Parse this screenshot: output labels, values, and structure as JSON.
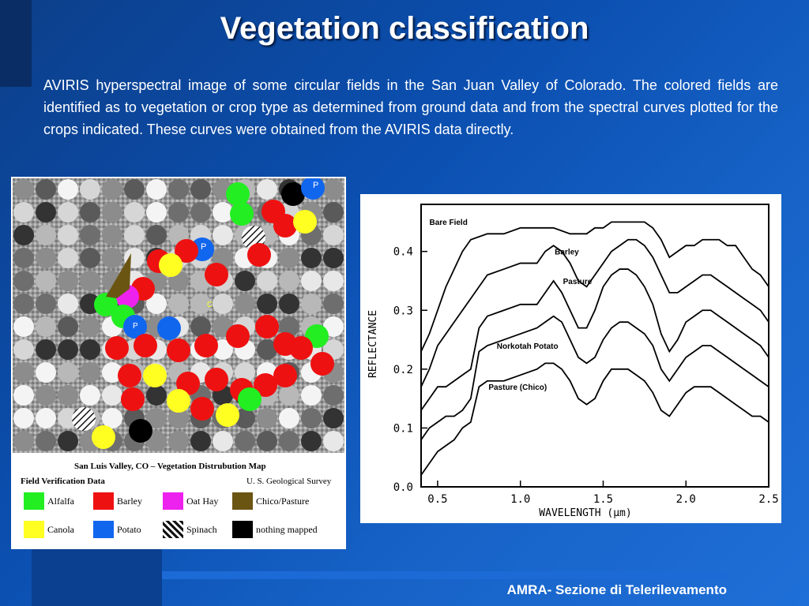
{
  "slide": {
    "title": "Vegetation classification",
    "description": "AVIRIS hyperspectral image of some circular fields in the San Juan Valley of Colorado. The colored fields are identified as to vegetation or crop type as determined from ground data and from the spectral curves plotted for the crops indicated. These curves were obtained from the AVIRIS data directly.",
    "footer": "AMRA- Sezione di Telerilevamento"
  },
  "map": {
    "title": "San Luis Valley, CO – Vegetation Distrubution Map",
    "field_label": "Field Verification Data",
    "source": "U. S. Geological Survey",
    "legend": [
      {
        "label": "Alfalfa",
        "color": "#22ee22"
      },
      {
        "label": "Barley",
        "color": "#ee1111"
      },
      {
        "label": "Oat Hay",
        "color": "#ee22ee"
      },
      {
        "label": "Chico/Pasture",
        "color": "#6b5513"
      },
      {
        "label": "Canola",
        "color": "#ffff22"
      },
      {
        "label": "Potato",
        "color": "#1166ee"
      },
      {
        "label": "Spinach",
        "color": "hatched"
      },
      {
        "label": "nothing mapped",
        "color": "#000000"
      }
    ],
    "markers": [
      "P",
      "P",
      "P",
      "C"
    ]
  },
  "chart_data": {
    "type": "line",
    "xlabel": "WAVELENGTH  (μm)",
    "ylabel": "REFLECTANCE",
    "xlim": [
      0.4,
      2.5
    ],
    "ylim": [
      0.0,
      0.48
    ],
    "xticks": [
      "0.5",
      "1.0",
      "1.5",
      "2.0",
      "2.5"
    ],
    "yticks": [
      "0.0",
      "0.1",
      "0.2",
      "0.3",
      "0.4"
    ],
    "series": [
      {
        "name": "Bare Field",
        "x": [
          0.4,
          0.45,
          0.5,
          0.55,
          0.6,
          0.65,
          0.7,
          0.8,
          0.9,
          1.0,
          1.1,
          1.2,
          1.3,
          1.4,
          1.45,
          1.5,
          1.55,
          1.6,
          1.65,
          1.7,
          1.75,
          1.8,
          1.85,
          1.9,
          1.95,
          2.0,
          2.05,
          2.1,
          2.15,
          2.2,
          2.25,
          2.3,
          2.35,
          2.4,
          2.45,
          2.5
        ],
        "values": [
          0.23,
          0.26,
          0.3,
          0.34,
          0.37,
          0.4,
          0.42,
          0.43,
          0.43,
          0.44,
          0.44,
          0.44,
          0.43,
          0.43,
          0.44,
          0.44,
          0.45,
          0.45,
          0.45,
          0.45,
          0.45,
          0.44,
          0.42,
          0.39,
          0.4,
          0.41,
          0.41,
          0.42,
          0.42,
          0.42,
          0.41,
          0.41,
          0.39,
          0.37,
          0.36,
          0.34
        ]
      },
      {
        "name": "Barley",
        "x": [
          0.4,
          0.45,
          0.5,
          0.55,
          0.6,
          0.65,
          0.7,
          0.75,
          0.8,
          0.9,
          1.0,
          1.1,
          1.15,
          1.2,
          1.25,
          1.3,
          1.35,
          1.4,
          1.45,
          1.5,
          1.55,
          1.6,
          1.65,
          1.7,
          1.75,
          1.8,
          1.85,
          1.9,
          1.95,
          2.0,
          2.05,
          2.1,
          2.15,
          2.2,
          2.25,
          2.3,
          2.35,
          2.4,
          2.45,
          2.5
        ],
        "values": [
          0.17,
          0.2,
          0.24,
          0.26,
          0.28,
          0.3,
          0.32,
          0.34,
          0.36,
          0.37,
          0.38,
          0.38,
          0.4,
          0.41,
          0.4,
          0.38,
          0.35,
          0.34,
          0.36,
          0.38,
          0.4,
          0.41,
          0.42,
          0.42,
          0.41,
          0.39,
          0.36,
          0.33,
          0.33,
          0.34,
          0.35,
          0.36,
          0.36,
          0.35,
          0.34,
          0.33,
          0.32,
          0.31,
          0.3,
          0.28
        ]
      },
      {
        "name": "Pasture",
        "x": [
          0.4,
          0.45,
          0.5,
          0.55,
          0.6,
          0.65,
          0.7,
          0.75,
          0.8,
          0.9,
          1.0,
          1.1,
          1.15,
          1.2,
          1.25,
          1.3,
          1.35,
          1.4,
          1.45,
          1.5,
          1.55,
          1.6,
          1.65,
          1.7,
          1.75,
          1.8,
          1.85,
          1.9,
          1.95,
          2.0,
          2.05,
          2.1,
          2.15,
          2.2,
          2.25,
          2.3,
          2.35,
          2.4,
          2.45,
          2.5
        ],
        "values": [
          0.13,
          0.15,
          0.17,
          0.17,
          0.18,
          0.19,
          0.2,
          0.27,
          0.29,
          0.3,
          0.31,
          0.31,
          0.33,
          0.35,
          0.33,
          0.3,
          0.27,
          0.27,
          0.3,
          0.34,
          0.36,
          0.37,
          0.37,
          0.36,
          0.34,
          0.31,
          0.26,
          0.23,
          0.25,
          0.28,
          0.29,
          0.3,
          0.3,
          0.29,
          0.28,
          0.27,
          0.26,
          0.25,
          0.24,
          0.22
        ]
      },
      {
        "name": "Norkotah Potato",
        "x": [
          0.4,
          0.45,
          0.5,
          0.55,
          0.6,
          0.65,
          0.7,
          0.75,
          0.8,
          0.9,
          1.0,
          1.1,
          1.15,
          1.2,
          1.25,
          1.3,
          1.35,
          1.4,
          1.45,
          1.5,
          1.55,
          1.6,
          1.65,
          1.7,
          1.75,
          1.8,
          1.85,
          1.9,
          1.95,
          2.0,
          2.05,
          2.1,
          2.15,
          2.2,
          2.25,
          2.3,
          2.35,
          2.4,
          2.45,
          2.5
        ],
        "values": [
          0.08,
          0.1,
          0.11,
          0.12,
          0.12,
          0.13,
          0.15,
          0.23,
          0.24,
          0.25,
          0.26,
          0.27,
          0.28,
          0.29,
          0.28,
          0.25,
          0.22,
          0.21,
          0.22,
          0.25,
          0.27,
          0.28,
          0.28,
          0.27,
          0.26,
          0.24,
          0.2,
          0.18,
          0.2,
          0.22,
          0.23,
          0.24,
          0.24,
          0.23,
          0.22,
          0.21,
          0.2,
          0.19,
          0.18,
          0.17
        ]
      },
      {
        "name": "Pasture (Chico)",
        "x": [
          0.4,
          0.45,
          0.5,
          0.55,
          0.6,
          0.65,
          0.7,
          0.75,
          0.8,
          0.9,
          1.0,
          1.1,
          1.15,
          1.2,
          1.25,
          1.3,
          1.35,
          1.4,
          1.45,
          1.5,
          1.55,
          1.6,
          1.65,
          1.7,
          1.75,
          1.8,
          1.85,
          1.9,
          1.95,
          2.0,
          2.05,
          2.1,
          2.15,
          2.2,
          2.25,
          2.3,
          2.35,
          2.4,
          2.45,
          2.5
        ],
        "values": [
          0.02,
          0.04,
          0.06,
          0.07,
          0.08,
          0.1,
          0.11,
          0.17,
          0.18,
          0.18,
          0.19,
          0.2,
          0.21,
          0.21,
          0.2,
          0.18,
          0.15,
          0.14,
          0.15,
          0.18,
          0.2,
          0.2,
          0.2,
          0.19,
          0.18,
          0.16,
          0.13,
          0.12,
          0.14,
          0.16,
          0.17,
          0.17,
          0.17,
          0.16,
          0.15,
          0.14,
          0.13,
          0.12,
          0.12,
          0.11
        ]
      }
    ]
  }
}
